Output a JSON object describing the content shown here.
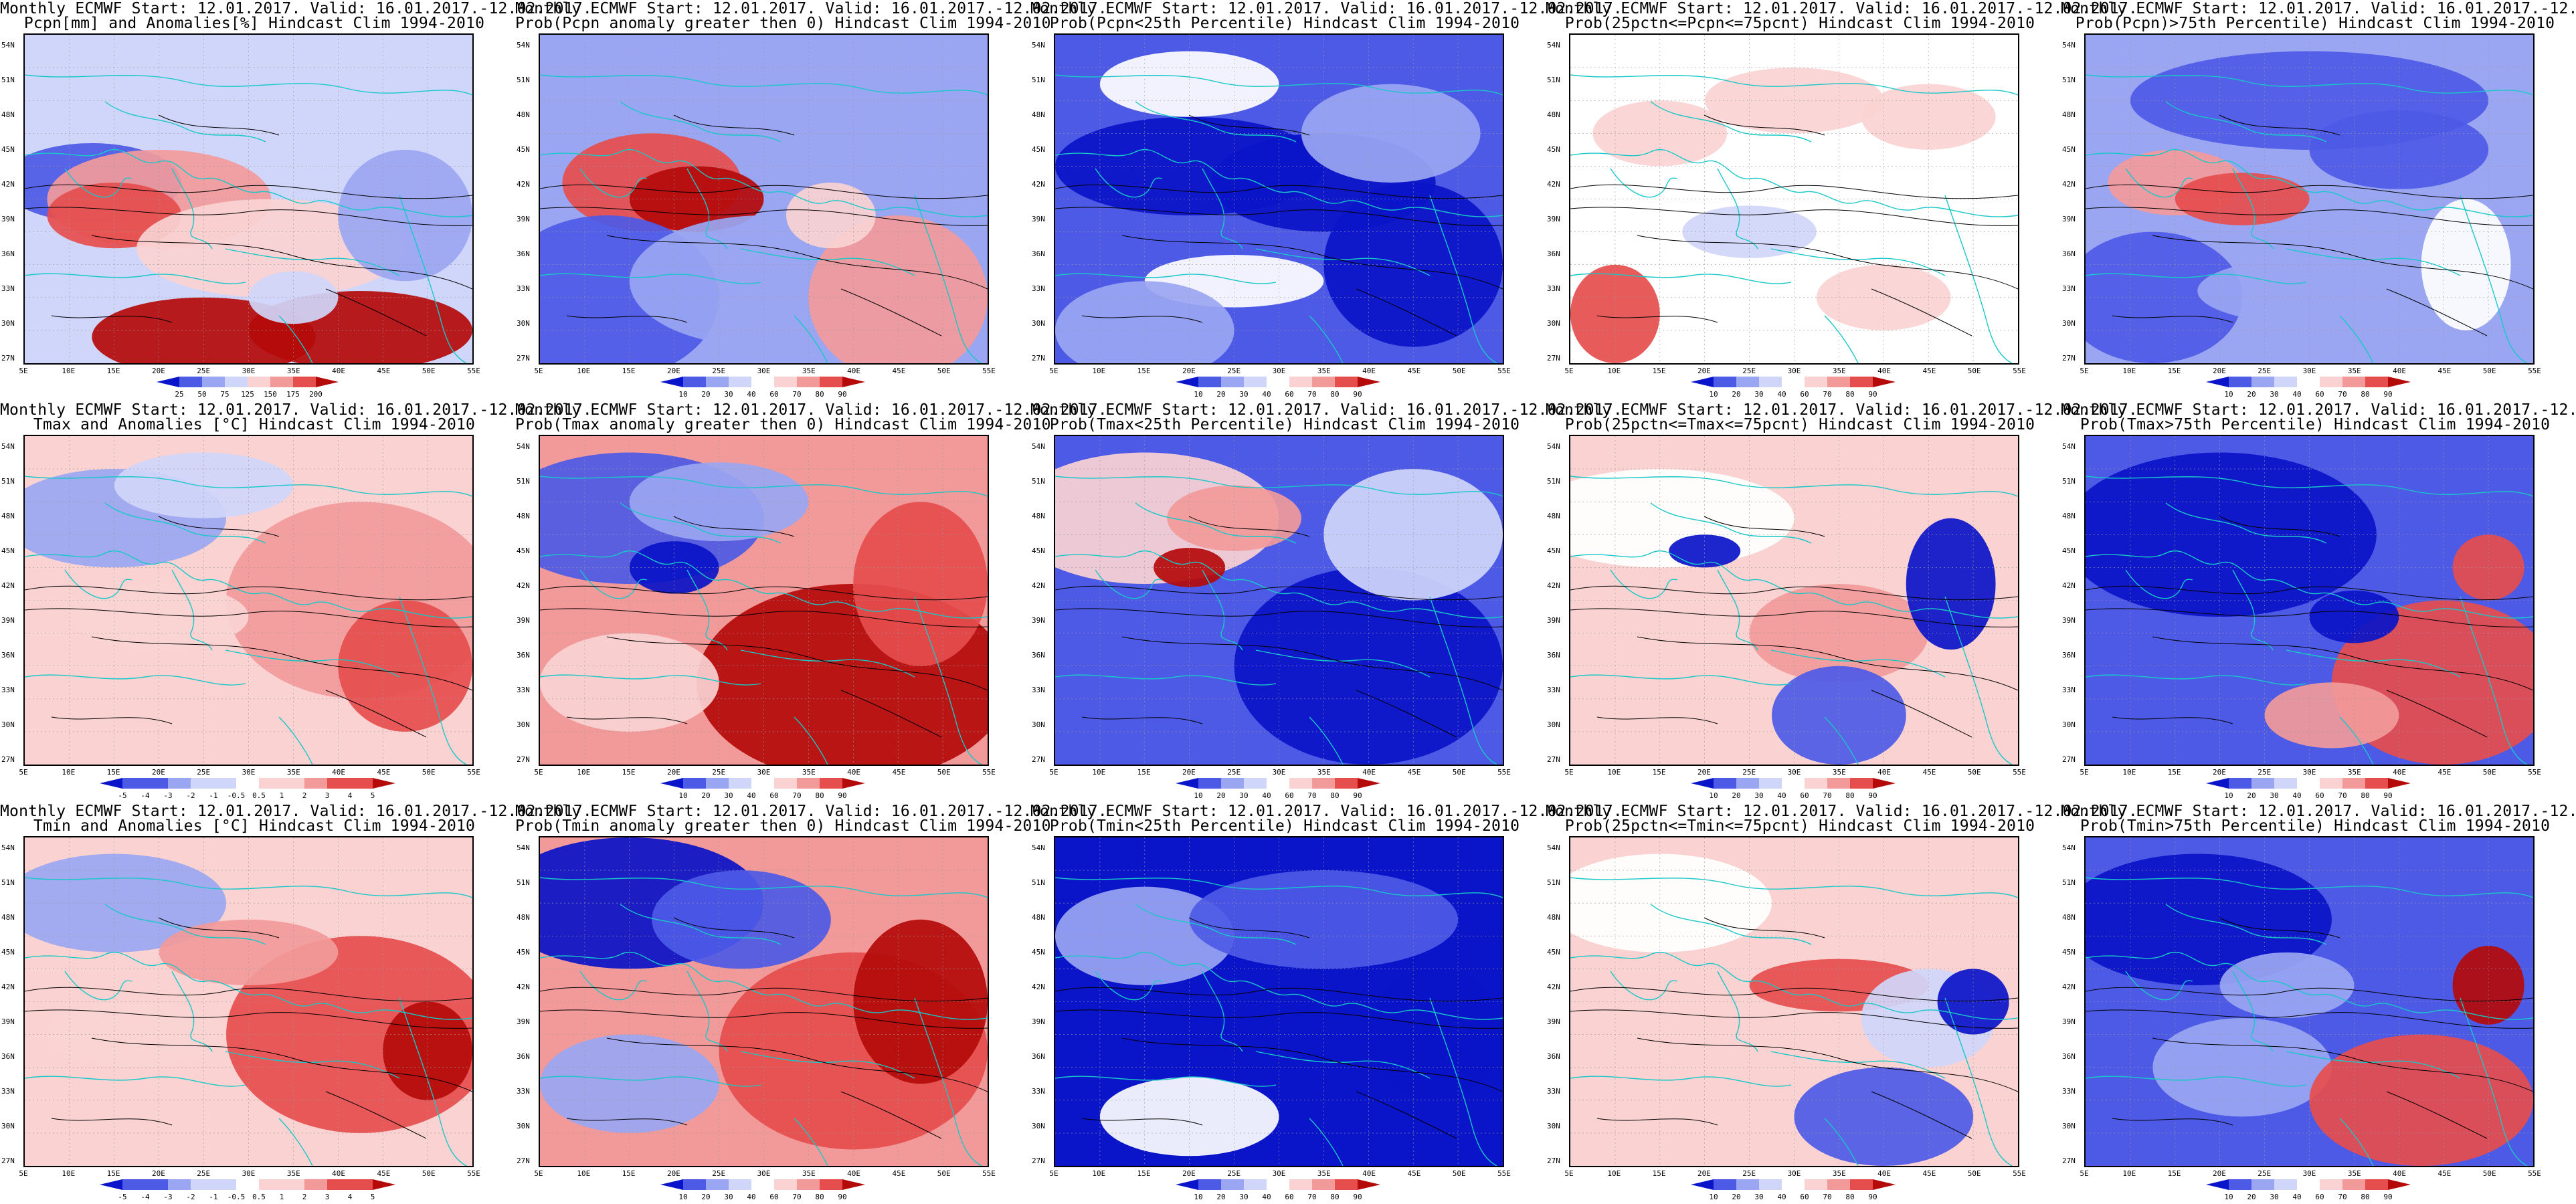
{
  "header": {
    "model_line": "Monthly ECMWF Start: 12.01.2017. Valid: 16.01.2017.-12.02.2017."
  },
  "axes": {
    "lat_labels": [
      "54N",
      "51N",
      "48N",
      "45N",
      "42N",
      "39N",
      "36N",
      "33N",
      "30N",
      "27N"
    ],
    "lon_labels": [
      "5E",
      "10E",
      "15E",
      "20E",
      "25E",
      "30E",
      "35E",
      "40E",
      "45E",
      "50E",
      "55E"
    ]
  },
  "colors": {
    "blue_deep": "#0a14c8",
    "blue_mid": "#4d5ae6",
    "blue_light": "#9aa6f2",
    "blue_pale": "#d0d6fa",
    "white": "#ffffff",
    "red_pale": "#fad2d2",
    "red_light": "#f29a9a",
    "red_mid": "#e64d4d",
    "red_deep": "#b40a0a",
    "coast": "#18c8c8",
    "contour": "#000000"
  },
  "rows": [
    {
      "variable": "Pcpn",
      "panels": [
        {
          "subtitle": "Pcpn[mm] and Anomalies[%] Hindcast Clim 1994-2010",
          "colorbar": [
            "25",
            "50",
            "75",
            "125",
            "150",
            "175",
            "200"
          ],
          "palette": "anomaly"
        },
        {
          "subtitle": "Prob(Pcpn anomaly greater then 0) Hindcast Clim 1994-2010",
          "colorbar": [
            "10",
            "20",
            "30",
            "40",
            "60",
            "70",
            "80",
            "90"
          ],
          "palette": "prob"
        },
        {
          "subtitle": "Prob(Pcpn<25th Percentile) Hindcast Clim 1994-2010",
          "colorbar": [
            "10",
            "20",
            "30",
            "40",
            "60",
            "70",
            "80",
            "90"
          ],
          "palette": "prob"
        },
        {
          "subtitle": "Prob(25pctn<=Pcpn<=75pcnt) Hindcast Clim 1994-2010",
          "colorbar": [
            "10",
            "20",
            "30",
            "40",
            "60",
            "70",
            "80",
            "90"
          ],
          "palette": "prob"
        },
        {
          "subtitle": "Prob(Pcpn)>75th Percentile) Hindcast Clim 1994-2010",
          "colorbar": [
            "10",
            "20",
            "30",
            "40",
            "60",
            "70",
            "80",
            "90"
          ],
          "palette": "prob"
        }
      ]
    },
    {
      "variable": "Tmax",
      "panels": [
        {
          "subtitle": "Tmax and Anomalies [°C] Hindcast Clim 1994-2010",
          "colorbar": [
            "-5",
            "-4",
            "-3",
            "-2",
            "-1",
            "-0.5",
            "0.5",
            "1",
            "2",
            "3",
            "4",
            "5"
          ],
          "palette": "anomaly"
        },
        {
          "subtitle": "Prob(Tmax anomaly greater then 0) Hindcast Clim 1994-2010",
          "colorbar": [
            "10",
            "20",
            "30",
            "40",
            "60",
            "70",
            "80",
            "90"
          ],
          "palette": "prob"
        },
        {
          "subtitle": "Prob(Tmax<25th Percentile) Hindcast Clim 1994-2010",
          "colorbar": [
            "10",
            "20",
            "30",
            "40",
            "60",
            "70",
            "80",
            "90"
          ],
          "palette": "prob"
        },
        {
          "subtitle": "Prob(25pctn<=Tmax<=75pcnt) Hindcast Clim 1994-2010",
          "colorbar": [
            "10",
            "20",
            "30",
            "40",
            "60",
            "70",
            "80",
            "90"
          ],
          "palette": "prob"
        },
        {
          "subtitle": "Prob(Tmax>75th Percentile) Hindcast Clim 1994-2010",
          "colorbar": [
            "10",
            "20",
            "30",
            "40",
            "60",
            "70",
            "80",
            "90"
          ],
          "palette": "prob"
        }
      ]
    },
    {
      "variable": "Tmin",
      "panels": [
        {
          "subtitle": "Tmin and Anomalies [°C] Hindcast Clim 1994-2010",
          "colorbar": [
            "-5",
            "-4",
            "-3",
            "-2",
            "-1",
            "-0.5",
            "0.5",
            "1",
            "2",
            "3",
            "4",
            "5"
          ],
          "palette": "anomaly"
        },
        {
          "subtitle": "Prob(Tmin anomaly greater then 0) Hindcast Clim 1994-2010",
          "colorbar": [
            "10",
            "20",
            "30",
            "40",
            "60",
            "70",
            "80",
            "90"
          ],
          "palette": "prob"
        },
        {
          "subtitle": "Prob(Tmin<25th Percentile) Hindcast Clim 1994-2010",
          "colorbar": [
            "10",
            "20",
            "30",
            "40",
            "60",
            "70",
            "80",
            "90"
          ],
          "palette": "prob"
        },
        {
          "subtitle": "Prob(25pctn<=Tmin<=75pcnt) Hindcast Clim 1994-2010",
          "colorbar": [
            "10",
            "20",
            "30",
            "40",
            "60",
            "70",
            "80",
            "90"
          ],
          "palette": "prob"
        },
        {
          "subtitle": "Prob(Tmin>75th Percentile) Hindcast Clim 1994-2010",
          "colorbar": [
            "10",
            "20",
            "30",
            "40",
            "60",
            "70",
            "80",
            "90"
          ],
          "palette": "prob"
        }
      ]
    }
  ]
}
